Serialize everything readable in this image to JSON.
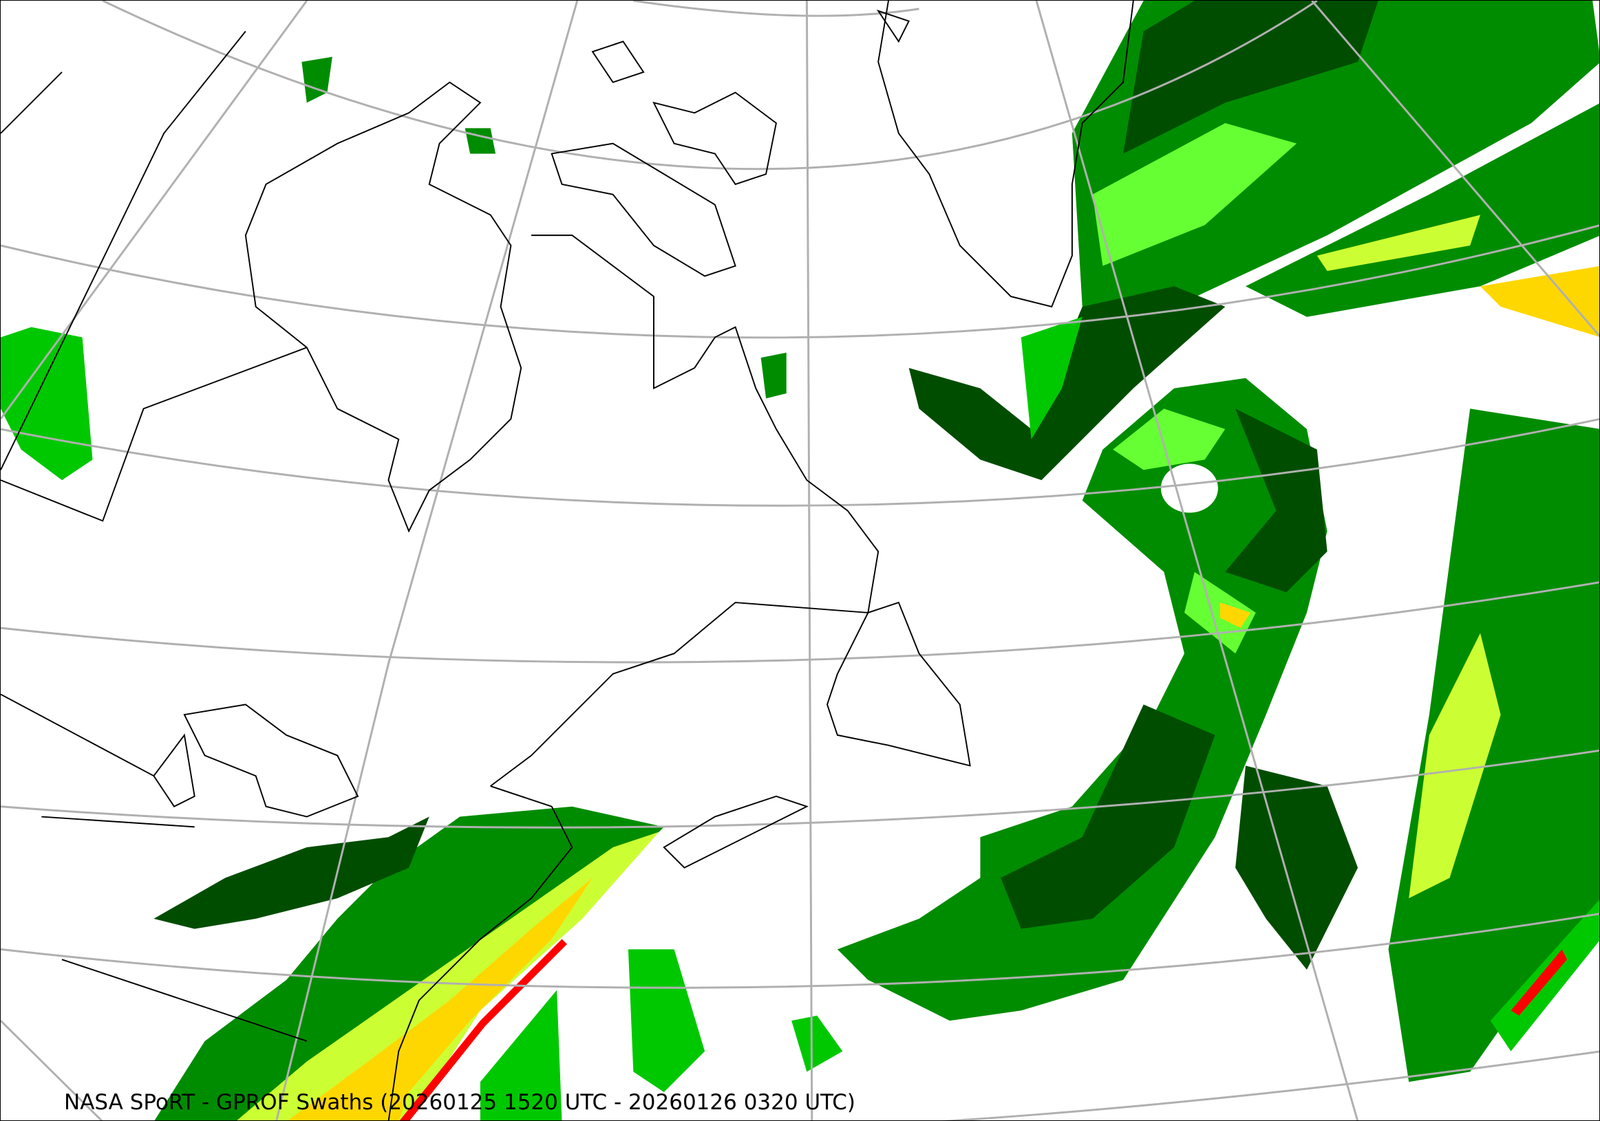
{
  "caption": "NASA SPoRT - GPROF Swaths (20260125 1520 UTC - 20260126 0320 UTC)",
  "colors": {
    "background": "#ffffff",
    "graticule": "#b0b0b0",
    "coastline": "#000000",
    "precip_scale": [
      "#004d00",
      "#008c00",
      "#00c800",
      "#66ff33",
      "#ccff33",
      "#ffd700",
      "#ff9900",
      "#ff0000"
    ]
  }
}
